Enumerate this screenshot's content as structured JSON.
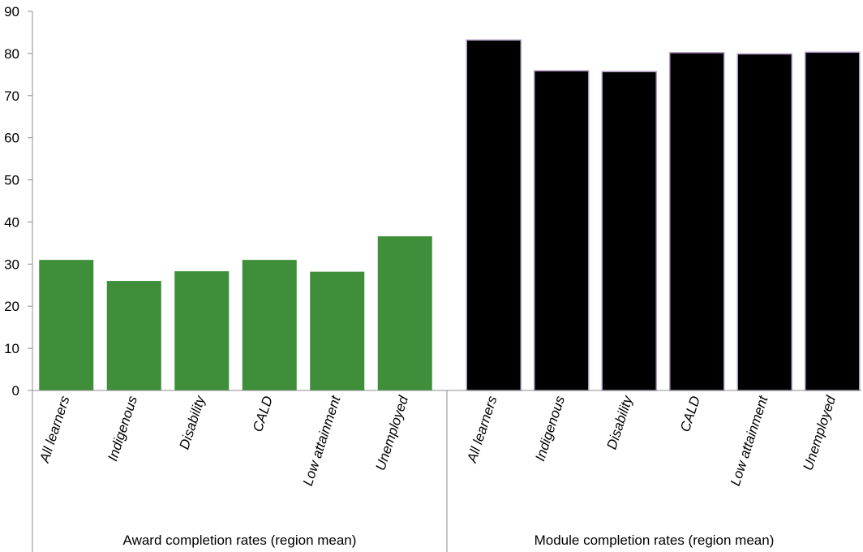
{
  "chart_data": {
    "type": "bar",
    "title": "",
    "xlabel": "",
    "ylabel": "",
    "ylim": [
      0,
      90
    ],
    "yticks": [
      0,
      10,
      20,
      30,
      40,
      50,
      60,
      70,
      80,
      90
    ],
    "grid": false,
    "legend": "none",
    "groups": [
      {
        "label": "Award completion rates (region mean)",
        "color": "#3f8f3a",
        "categories": [
          "All learners",
          "Indigenous",
          "Disability",
          "CALD",
          "Low attainment",
          "Unemployed"
        ],
        "values": [
          31.0,
          26.0,
          28.3,
          31.0,
          28.2,
          36.6
        ]
      },
      {
        "label": "Module completion rates (region mean)",
        "color": "#000000",
        "categories": [
          "All learners",
          "Indigenous",
          "Disability",
          "CALD",
          "Low attainment",
          "Unemployed"
        ],
        "values": [
          83.2,
          75.9,
          75.7,
          80.2,
          79.9,
          80.3
        ]
      }
    ]
  }
}
